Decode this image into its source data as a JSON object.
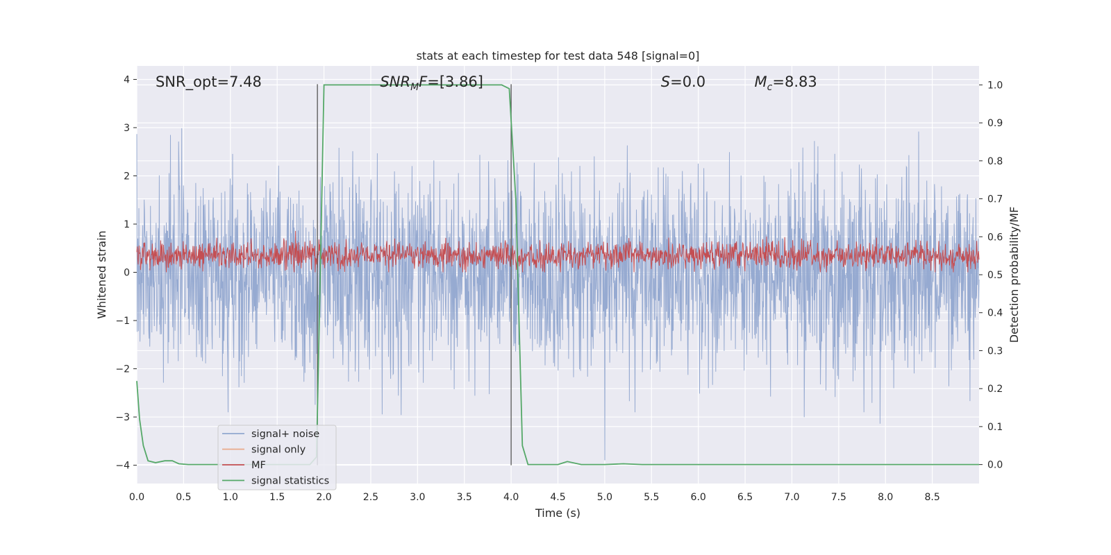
{
  "chart_data": {
    "type": "line",
    "title": "stats at each timestep for test data 548 [signal=0]",
    "xlabel": "Time (s)",
    "ylabel_left": "Whitened strain",
    "ylabel_right": "Detection probability/MF",
    "xlim": [
      0.0,
      9.0
    ],
    "ylim_left": [
      -4.38,
      4.28
    ],
    "ylim_right": [
      -0.05,
      1.05
    ],
    "xticks": [
      "0.0",
      "0.5",
      "1.0",
      "1.5",
      "2.0",
      "2.5",
      "3.0",
      "3.5",
      "4.0",
      "4.5",
      "5.0",
      "5.5",
      "6.0",
      "6.5",
      "7.0",
      "7.5",
      "8.0",
      "8.5"
    ],
    "yticks_left": [
      "−4",
      "−3",
      "−2",
      "−1",
      "0",
      "1",
      "2",
      "3",
      "4"
    ],
    "yticks_right": [
      "0.0",
      "0.1",
      "0.2",
      "0.3",
      "0.4",
      "0.5",
      "0.6",
      "0.7",
      "0.8",
      "0.9",
      "1.0"
    ],
    "grid": true,
    "legend_position": "lower-left",
    "legend": [
      "signal+ noise",
      "signal only",
      "MF",
      "signal statistics"
    ],
    "annotations": {
      "snr_opt": "SNR_opt=7.48",
      "snr_mf_var": "SNR",
      "snr_mf_sub": "M",
      "snr_mf_tail": "F",
      "snr_mf_value": "=[3.86]",
      "s_var": "S",
      "s_value": "=0.0",
      "mc_var": "M",
      "mc_sub": "c",
      "mc_value": "=8.83"
    },
    "vertical_markers_x": [
      1.93,
      4.0
    ],
    "series": [
      {
        "name": "signal+ noise",
        "color": "#91a7cf",
        "axis": "left",
        "description_values": "dense noise, amplitude roughly within ±2 (peaks to ±4)"
      },
      {
        "name": "signal only",
        "color": "#e8a98a",
        "axis": "left",
        "values": []
      },
      {
        "name": "MF",
        "color": "#c44e52",
        "axis": "left",
        "description_values": "dense trace between about 0.0 and 0.9"
      },
      {
        "name": "signal statistics",
        "color": "#55a868",
        "axis": "right",
        "x": [
          0.0,
          0.03,
          0.07,
          0.12,
          0.2,
          0.3,
          0.38,
          0.45,
          0.55,
          0.7,
          1.0,
          1.5,
          1.85,
          1.92,
          1.96,
          2.0,
          2.5,
          3.0,
          3.5,
          3.9,
          3.98,
          4.05,
          4.12,
          4.18,
          4.3,
          4.5,
          4.6,
          4.75,
          5.0,
          5.2,
          5.4,
          6.0,
          7.0,
          8.0,
          9.0
        ],
        "y": [
          0.22,
          0.12,
          0.05,
          0.01,
          0.005,
          0.01,
          0.01,
          0.002,
          0.0,
          0.0,
          0.0,
          0.0,
          0.0,
          0.02,
          0.5,
          1.0,
          1.0,
          1.0,
          1.0,
          1.0,
          0.99,
          0.7,
          0.05,
          0.0,
          0.0,
          0.0,
          0.008,
          0.0,
          0.0,
          0.002,
          0.0,
          0.0,
          0.0,
          0.0,
          0.0
        ]
      }
    ]
  }
}
